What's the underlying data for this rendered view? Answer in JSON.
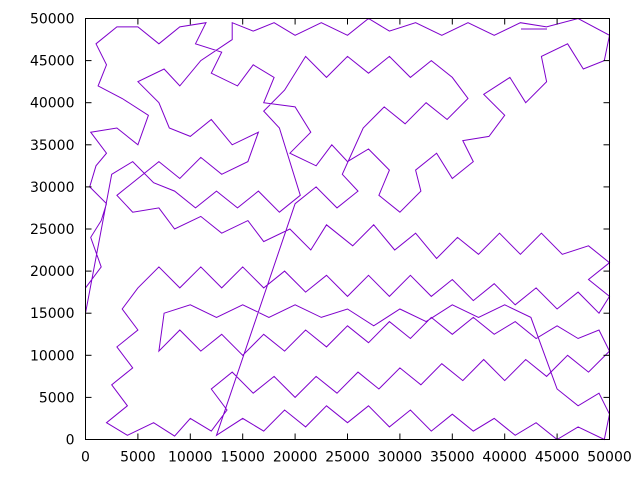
{
  "chart_data": {
    "type": "line",
    "title": "",
    "xlabel": "",
    "ylabel": "",
    "xlim": [
      0,
      50000
    ],
    "ylim": [
      0,
      50000
    ],
    "x_ticks": [
      "0",
      "5000",
      "10000",
      "15000",
      "20000",
      "25000",
      "30000",
      "35000",
      "40000",
      "45000",
      "50000"
    ],
    "y_ticks": [
      "0",
      "5000",
      "10000",
      "15000",
      "20000",
      "25000",
      "30000",
      "35000",
      "40000",
      "45000",
      "50000"
    ],
    "grid": false,
    "legend": "top-right",
    "legend_entries": [
      ""
    ],
    "series": [
      {
        "color": "#7f00cc",
        "description": "single closed tour polyline visiting many points spread uniformly over the square",
        "points": [
          [
            0,
            15000
          ],
          [
            0,
            18000
          ],
          [
            1500,
            20500
          ],
          [
            500,
            24000
          ],
          [
            1500,
            26000
          ],
          [
            2000,
            28000
          ],
          [
            400,
            30000
          ],
          [
            1000,
            32500
          ],
          [
            2000,
            34000
          ],
          [
            500,
            36500
          ],
          [
            3000,
            37000
          ],
          [
            5000,
            35000
          ],
          [
            6000,
            38500
          ],
          [
            3500,
            40500
          ],
          [
            1200,
            42000
          ],
          [
            2000,
            44500
          ],
          [
            1000,
            47000
          ],
          [
            3000,
            49000
          ],
          [
            5000,
            49000
          ],
          [
            7000,
            47000
          ],
          [
            9000,
            49000
          ],
          [
            11500,
            49500
          ],
          [
            10500,
            47000
          ],
          [
            13000,
            46000
          ],
          [
            12000,
            43500
          ],
          [
            14500,
            42000
          ],
          [
            16000,
            44500
          ],
          [
            18000,
            43000
          ],
          [
            17000,
            40000
          ],
          [
            20000,
            39500
          ],
          [
            21500,
            36500
          ],
          [
            19500,
            34000
          ],
          [
            22000,
            32500
          ],
          [
            23500,
            35000
          ],
          [
            25000,
            33000
          ],
          [
            27000,
            34500
          ],
          [
            29000,
            32000
          ],
          [
            28000,
            29000
          ],
          [
            30000,
            27000
          ],
          [
            32000,
            29500
          ],
          [
            31500,
            32000
          ],
          [
            33500,
            34000
          ],
          [
            35000,
            31000
          ],
          [
            37000,
            33000
          ],
          [
            36000,
            35500
          ],
          [
            38500,
            36000
          ],
          [
            40000,
            38500
          ],
          [
            38000,
            41000
          ],
          [
            40500,
            43000
          ],
          [
            42000,
            40000
          ],
          [
            44000,
            42500
          ],
          [
            43500,
            45500
          ],
          [
            46000,
            47000
          ],
          [
            47500,
            44000
          ],
          [
            49500,
            45000
          ],
          [
            50000,
            48000
          ],
          [
            47000,
            50000
          ],
          [
            44000,
            49000
          ],
          [
            41500,
            49500
          ],
          [
            39000,
            48000
          ],
          [
            36500,
            49500
          ],
          [
            34000,
            48000
          ],
          [
            31500,
            49500
          ],
          [
            29000,
            48500
          ],
          [
            27000,
            50000
          ],
          [
            25000,
            48000
          ],
          [
            22500,
            49500
          ],
          [
            20000,
            48000
          ],
          [
            18000,
            49500
          ],
          [
            16000,
            48500
          ],
          [
            14000,
            49500
          ],
          [
            14000,
            47500
          ],
          [
            11000,
            45000
          ],
          [
            9000,
            42000
          ],
          [
            7500,
            44000
          ],
          [
            5000,
            42500
          ],
          [
            7000,
            40000
          ],
          [
            8000,
            37000
          ],
          [
            10000,
            36000
          ],
          [
            12000,
            38000
          ],
          [
            14000,
            35000
          ],
          [
            16500,
            36500
          ],
          [
            15500,
            33000
          ],
          [
            13000,
            31500
          ],
          [
            11000,
            33500
          ],
          [
            9000,
            31000
          ],
          [
            7000,
            33000
          ],
          [
            5000,
            31000
          ],
          [
            3000,
            29000
          ],
          [
            4500,
            27000
          ],
          [
            7000,
            27500
          ],
          [
            8500,
            25000
          ],
          [
            11000,
            26500
          ],
          [
            13000,
            24500
          ],
          [
            15500,
            26000
          ],
          [
            17000,
            23500
          ],
          [
            19500,
            25000
          ],
          [
            21500,
            22500
          ],
          [
            23000,
            25500
          ],
          [
            25500,
            23000
          ],
          [
            27500,
            25500
          ],
          [
            29500,
            22500
          ],
          [
            31500,
            24500
          ],
          [
            33500,
            21500
          ],
          [
            35500,
            24000
          ],
          [
            37500,
            22000
          ],
          [
            39500,
            24500
          ],
          [
            41500,
            22000
          ],
          [
            43500,
            24500
          ],
          [
            45500,
            22000
          ],
          [
            48000,
            23000
          ],
          [
            50000,
            21000
          ],
          [
            48000,
            19000
          ],
          [
            50000,
            17000
          ],
          [
            49000,
            15000
          ],
          [
            47000,
            17500
          ],
          [
            45000,
            15500
          ],
          [
            43000,
            18000
          ],
          [
            41000,
            16000
          ],
          [
            39000,
            18500
          ],
          [
            37000,
            16500
          ],
          [
            35000,
            19000
          ],
          [
            33000,
            17000
          ],
          [
            31000,
            19500
          ],
          [
            29000,
            17000
          ],
          [
            27000,
            19500
          ],
          [
            25000,
            17000
          ],
          [
            23000,
            19500
          ],
          [
            21000,
            17500
          ],
          [
            19000,
            20000
          ],
          [
            17000,
            18000
          ],
          [
            15000,
            20500
          ],
          [
            13000,
            18000
          ],
          [
            11000,
            20500
          ],
          [
            9000,
            18000
          ],
          [
            7000,
            20500
          ],
          [
            5000,
            18000
          ],
          [
            3500,
            15500
          ],
          [
            5000,
            13000
          ],
          [
            3000,
            11000
          ],
          [
            4500,
            8500
          ],
          [
            2500,
            6500
          ],
          [
            4000,
            4000
          ],
          [
            2000,
            2000
          ],
          [
            4000,
            500
          ],
          [
            6500,
            2000
          ],
          [
            8500,
            400
          ],
          [
            10000,
            2500
          ],
          [
            12000,
            1000
          ],
          [
            13500,
            3500
          ],
          [
            12000,
            6000
          ],
          [
            14000,
            8000
          ],
          [
            16000,
            5500
          ],
          [
            18000,
            7500
          ],
          [
            20000,
            5000
          ],
          [
            22000,
            7500
          ],
          [
            24000,
            5500
          ],
          [
            26000,
            8000
          ],
          [
            28000,
            6000
          ],
          [
            30000,
            8500
          ],
          [
            32000,
            6500
          ],
          [
            34000,
            9000
          ],
          [
            36000,
            7000
          ],
          [
            38000,
            9500
          ],
          [
            40000,
            7000
          ],
          [
            42000,
            9500
          ],
          [
            44000,
            7500
          ],
          [
            46000,
            10000
          ],
          [
            48000,
            8000
          ],
          [
            50000,
            10500
          ],
          [
            49000,
            13000
          ],
          [
            47000,
            12000
          ],
          [
            45000,
            13500
          ],
          [
            43000,
            12000
          ],
          [
            41000,
            14000
          ],
          [
            39000,
            12500
          ],
          [
            37000,
            14500
          ],
          [
            35000,
            12500
          ],
          [
            33000,
            14500
          ],
          [
            31000,
            12000
          ],
          [
            29000,
            14000
          ],
          [
            27000,
            11500
          ],
          [
            25000,
            13500
          ],
          [
            23000,
            11000
          ],
          [
            21000,
            13000
          ],
          [
            19000,
            10500
          ],
          [
            17000,
            12500
          ],
          [
            15000,
            10000
          ],
          [
            13000,
            12500
          ],
          [
            11000,
            10500
          ],
          [
            9000,
            13000
          ],
          [
            7000,
            10500
          ],
          [
            7500,
            15000
          ],
          [
            10000,
            16000
          ],
          [
            12500,
            14500
          ],
          [
            15000,
            16000
          ],
          [
            17500,
            14500
          ],
          [
            20000,
            16000
          ],
          [
            22500,
            14500
          ],
          [
            25000,
            15500
          ],
          [
            27500,
            13500
          ],
          [
            30000,
            15500
          ],
          [
            32500,
            14000
          ],
          [
            35000,
            16000
          ],
          [
            37500,
            14500
          ],
          [
            40000,
            16000
          ],
          [
            42500,
            14500
          ],
          [
            45000,
            6000
          ],
          [
            47000,
            4000
          ],
          [
            49000,
            5500
          ],
          [
            50000,
            3000
          ],
          [
            49500,
            0
          ],
          [
            47000,
            1500
          ],
          [
            45000,
            0
          ],
          [
            43000,
            2000
          ],
          [
            41000,
            500
          ],
          [
            39000,
            2500
          ],
          [
            37000,
            1000
          ],
          [
            35000,
            3000
          ],
          [
            33000,
            1000
          ],
          [
            31000,
            3500
          ],
          [
            29000,
            1500
          ],
          [
            27000,
            4000
          ],
          [
            25000,
            2000
          ],
          [
            23000,
            4000
          ],
          [
            21000,
            1500
          ],
          [
            19000,
            3500
          ],
          [
            17000,
            1000
          ],
          [
            15000,
            2500
          ],
          [
            12500,
            500
          ],
          [
            20000,
            28000
          ],
          [
            22000,
            30000
          ],
          [
            24000,
            27500
          ],
          [
            26000,
            29500
          ],
          [
            24500,
            31500
          ],
          [
            26500,
            37000
          ],
          [
            28500,
            39500
          ],
          [
            30500,
            37500
          ],
          [
            32500,
            40000
          ],
          [
            34500,
            38000
          ],
          [
            36500,
            40500
          ],
          [
            35000,
            43000
          ],
          [
            33000,
            45000
          ],
          [
            31000,
            43000
          ],
          [
            29000,
            45500
          ],
          [
            27000,
            43500
          ],
          [
            25000,
            45500
          ],
          [
            23000,
            43000
          ],
          [
            21000,
            45500
          ],
          [
            19000,
            41500
          ],
          [
            17000,
            39000
          ],
          [
            18500,
            37000
          ],
          [
            20500,
            29000
          ],
          [
            18500,
            27000
          ],
          [
            16500,
            29500
          ],
          [
            14500,
            27500
          ],
          [
            12500,
            29500
          ],
          [
            10500,
            27500
          ],
          [
            8500,
            29500
          ],
          [
            6500,
            30500
          ],
          [
            4500,
            33000
          ],
          [
            2500,
            31500
          ],
          [
            0,
            15000
          ]
        ]
      }
    ]
  }
}
